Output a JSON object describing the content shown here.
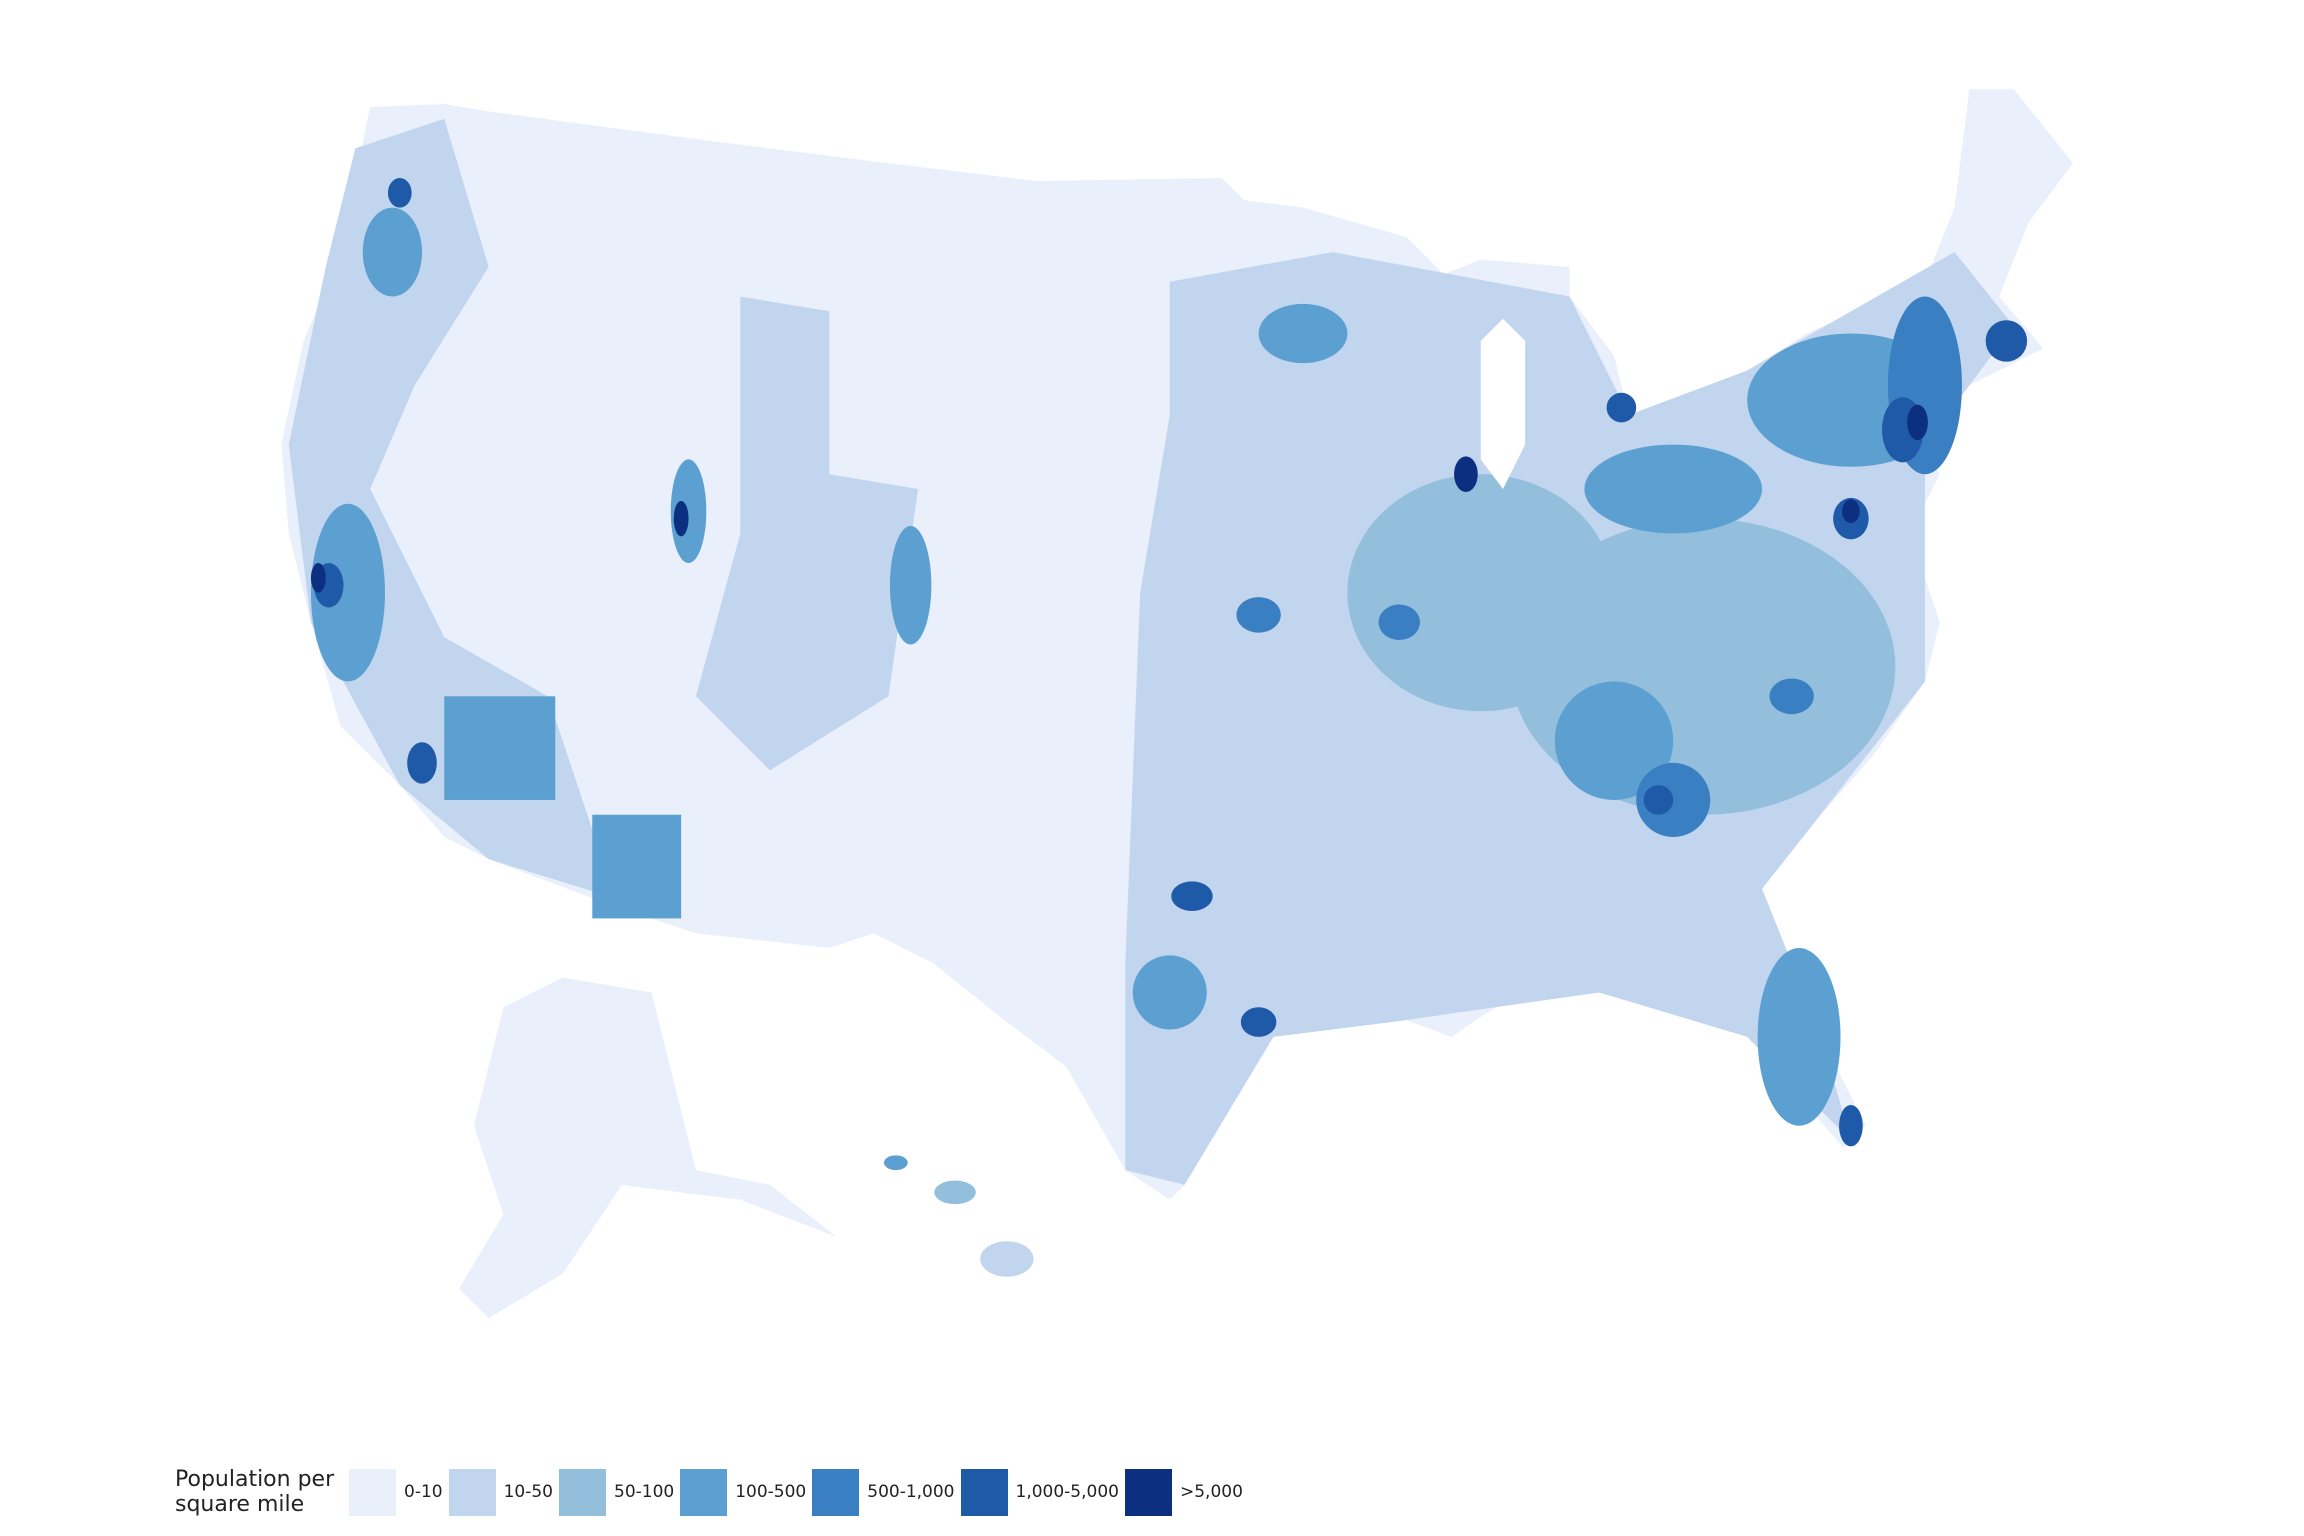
{
  "legend": {
    "title": "Population per square mile",
    "items": [
      {
        "label": "0-10",
        "color": "#eaeffc"
      },
      {
        "label": "10-50",
        "color": "#c1d5ee"
      },
      {
        "label": "50-100",
        "color": "#93bedc"
      },
      {
        "label": "100-500",
        "color": "#5c9fd1"
      },
      {
        "label": "500-1,000",
        "color": "#3a7fc1"
      },
      {
        "label": "1,000-5,000",
        "color": "#1f5aa8"
      },
      {
        "label": ">5,000",
        "color": "#0d2f80"
      }
    ]
  }
}
